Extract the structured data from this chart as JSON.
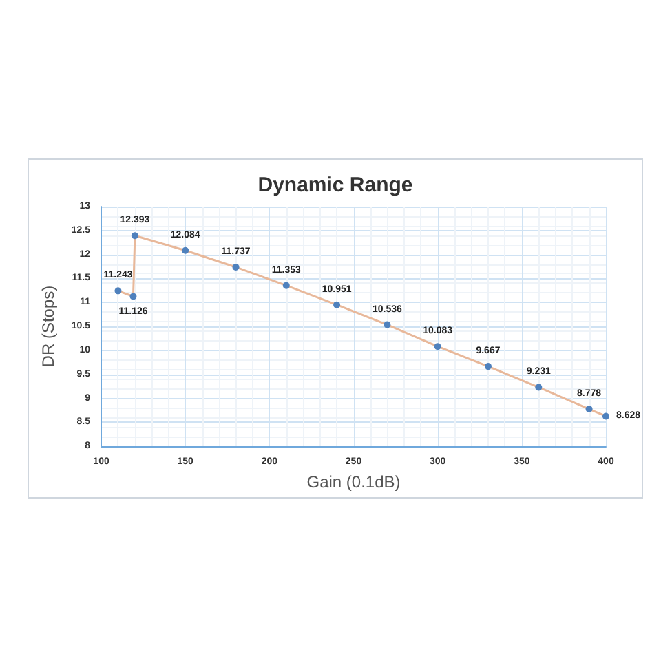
{
  "chart_data": {
    "type": "line",
    "title": "Dynamic Range",
    "xlabel": "Gain (0.1dB)",
    "ylabel": "DR (Stops)",
    "x": [
      110,
      119,
      120,
      150,
      180,
      210,
      240,
      270,
      300,
      330,
      360,
      390,
      400
    ],
    "series": [
      {
        "color": "#e8b89a",
        "colors": [
          "#4f81bd",
          "#4f81bd",
          "#4f81bd",
          "#4f81bd",
          "#4f81bd",
          "#4f81bd",
          "#4f81bd",
          "#4f81bd",
          "#4f81bd",
          "#4f81bd",
          "#4f81bd",
          "#4f81bd",
          "#4f81bd"
        ],
        "values": [
          11.243,
          11.126,
          12.393,
          12.084,
          11.737,
          11.353,
          10.951,
          10.536,
          10.083,
          9.667,
          9.231,
          8.778,
          8.628
        ]
      }
    ],
    "xlim": [
      100,
      400
    ],
    "xticks": [
      100,
      150,
      200,
      250,
      300,
      350,
      400
    ],
    "ylim": [
      8,
      13
    ],
    "yticks": [
      8,
      8.5,
      9,
      9.5,
      10,
      10.5,
      11,
      11.5,
      12,
      12.5,
      13
    ],
    "grid": true,
    "marker": "circle",
    "line_style": "solid",
    "data_labels": true
  }
}
